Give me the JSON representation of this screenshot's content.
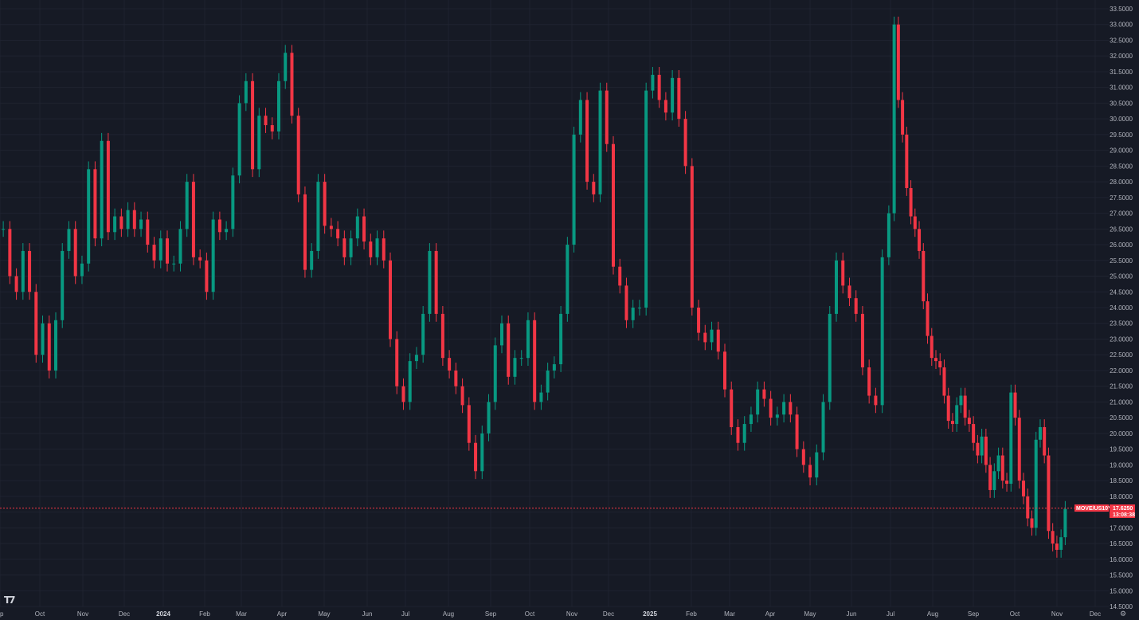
{
  "chart_data": {
    "type": "candlestick",
    "symbol": "MOVE/US10Y",
    "last_value": "17.6250",
    "countdown": "13:08:38",
    "y_axis": {
      "range": [
        14.5,
        33.5
      ],
      "ticks": [
        "33.5000",
        "33.0000",
        "32.5000",
        "32.0000",
        "31.5000",
        "31.0000",
        "30.5000",
        "30.0000",
        "29.5000",
        "29.0000",
        "28.5000",
        "28.0000",
        "27.5000",
        "27.0000",
        "26.5000",
        "26.0000",
        "25.5000",
        "25.0000",
        "24.5000",
        "24.0000",
        "23.5000",
        "23.0000",
        "22.5000",
        "22.0000",
        "21.5000",
        "21.0000",
        "20.5000",
        "20.0000",
        "19.5000",
        "19.0000",
        "18.5000",
        "18.0000",
        "17.5000",
        "17.0000",
        "16.5000",
        "16.0000",
        "15.5000",
        "15.0000",
        "14.5000"
      ]
    },
    "x_axis": {
      "ticks": [
        {
          "label": "ep",
          "bold": false
        },
        {
          "label": "Oct",
          "bold": false
        },
        {
          "label": "Nov",
          "bold": false
        },
        {
          "label": "Dec",
          "bold": false
        },
        {
          "label": "2024",
          "bold": true
        },
        {
          "label": "Feb",
          "bold": false
        },
        {
          "label": "Mar",
          "bold": false
        },
        {
          "label": "Apr",
          "bold": false
        },
        {
          "label": "May",
          "bold": false
        },
        {
          "label": "Jun",
          "bold": false
        },
        {
          "label": "Jul",
          "bold": false
        },
        {
          "label": "Aug",
          "bold": false
        },
        {
          "label": "Sep",
          "bold": false
        },
        {
          "label": "Oct",
          "bold": false
        },
        {
          "label": "Nov",
          "bold": false
        },
        {
          "label": "Dec",
          "bold": false
        },
        {
          "label": "2025",
          "bold": true
        },
        {
          "label": "Feb",
          "bold": false
        },
        {
          "label": "Mar",
          "bold": false
        },
        {
          "label": "Apr",
          "bold": false
        },
        {
          "label": "May",
          "bold": false
        },
        {
          "label": "Jun",
          "bold": false
        },
        {
          "label": "Jul",
          "bold": false
        },
        {
          "label": "Aug",
          "bold": false
        },
        {
          "label": "Sep",
          "bold": false
        },
        {
          "label": "Oct",
          "bold": false
        },
        {
          "label": "Nov",
          "bold": false
        },
        {
          "label": "Dec",
          "bold": false
        }
      ]
    },
    "series": [
      {
        "values": [
          26.5,
          25.0,
          24.5,
          25.8,
          24.5,
          22.5,
          23.5,
          22.0,
          23.6,
          25.8,
          26.5,
          25.0,
          25.4,
          28.4,
          26.2,
          29.3,
          26.4,
          26.9,
          26.5,
          27.1,
          26.5,
          26.8,
          26.0,
          25.5,
          26.2,
          25.4,
          25.4,
          26.5,
          28.0,
          25.6,
          25.5,
          24.5,
          26.8,
          26.4
        ]
      },
      {
        "values": [
          26.5,
          28.2,
          30.5,
          31.2,
          28.4,
          30.1,
          29.8,
          29.6,
          31.2,
          32.1,
          30.1,
          27.6,
          25.2,
          25.8,
          28.0,
          26.6,
          26.5,
          26.2,
          25.6,
          26.2,
          26.9,
          26.1,
          25.6,
          26.2,
          25.5,
          23.0,
          21.5,
          21.0,
          22.3,
          22.5,
          23.8,
          25.8,
          23.8,
          22.4
        ]
      },
      {
        "values": [
          22.0,
          21.5,
          20.9,
          19.7,
          18.8,
          20.0,
          21.0,
          22.8,
          23.5,
          21.8,
          22.4,
          22.4,
          23.6,
          21.0,
          21.3,
          22.0,
          22.2,
          23.8,
          26.0,
          29.5,
          30.6,
          28.0,
          27.6,
          30.9,
          29.2,
          25.3,
          24.7,
          23.6,
          24.0,
          24.0,
          30.9,
          31.4,
          30.6,
          30.2
        ]
      },
      {
        "values": [
          31.3,
          30.0,
          28.5,
          24.0,
          23.2,
          22.9,
          23.3,
          22.6,
          21.4,
          20.2,
          19.7,
          20.3,
          20.6,
          21.4,
          21.1,
          20.5,
          20.6,
          21.0,
          20.6,
          19.5,
          19.0,
          18.6,
          19.4,
          21.0,
          23.8,
          25.5,
          24.7,
          24.3,
          23.8,
          22.1,
          21.2,
          20.9,
          25.6,
          27.0
        ]
      },
      {
        "values": [
          33.0,
          30.6,
          29.5,
          27.8,
          26.9,
          26.5,
          25.8,
          24.2,
          23.1,
          22.4,
          22.3,
          22.1,
          21.2,
          20.4,
          20.3,
          20.9,
          21.2,
          20.5,
          20.3,
          19.7,
          19.3,
          19.9,
          19.0,
          18.2,
          18.8,
          19.3,
          18.5,
          18.4,
          21.3,
          20.5,
          18.5,
          18.0,
          17.3,
          17.0,
          19.8,
          20.2,
          19.3,
          16.9,
          16.5,
          16.3,
          16.7,
          17.6
        ]
      }
    ]
  }
}
